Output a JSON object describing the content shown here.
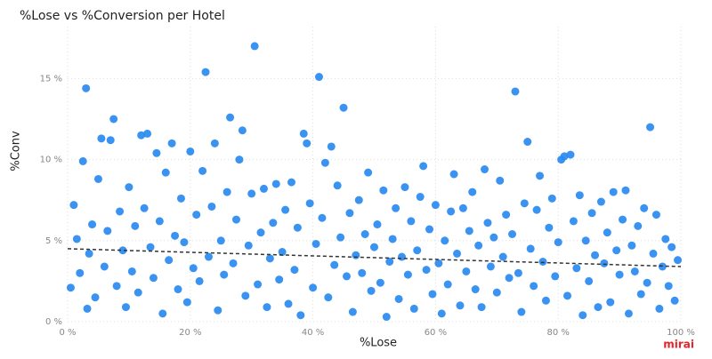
{
  "chart_data": {
    "type": "scatter",
    "title": "%Lose vs %Conversion per Hotel",
    "x_label": "%Lose",
    "y_label": "%Conv",
    "brand": "mirai",
    "color": "#2a8af0",
    "grid": true,
    "xlim": [
      0,
      100
    ],
    "ylim": [
      0,
      18.2
    ],
    "xticks": [
      {
        "value": 0,
        "label": "0 %"
      },
      {
        "value": 20,
        "label": "20 %"
      },
      {
        "value": 40,
        "label": "40 %"
      },
      {
        "value": 60,
        "label": "60 %"
      },
      {
        "value": 80,
        "label": "80 %"
      },
      {
        "value": 100,
        "label": "100 %"
      }
    ],
    "yticks": [
      {
        "value": 0,
        "label": "0 %"
      },
      {
        "value": 5,
        "label": "5 %"
      },
      {
        "value": 10,
        "label": "10 %"
      },
      {
        "value": 15,
        "label": "15 %"
      }
    ],
    "x": [
      0.5,
      1,
      1.5,
      2,
      2.5,
      3,
      3.2,
      3.5,
      4,
      4.5,
      5,
      5.5,
      6,
      6.5,
      7,
      7.5,
      8,
      8.5,
      9,
      9.5,
      10,
      10.5,
      11,
      11.5,
      12,
      12.5,
      13,
      13.5,
      14,
      14.5,
      15,
      15.5,
      16,
      16.5,
      17,
      17.5,
      18,
      18.5,
      19,
      19.5,
      20,
      20.5,
      21,
      21.5,
      22,
      22.5,
      23,
      23.5,
      24,
      24.5,
      25,
      25.5,
      26,
      26.5,
      27,
      27.5,
      28,
      28.5,
      29,
      29.5,
      30,
      30.5,
      31,
      31.5,
      32,
      32.5,
      33,
      33.5,
      34,
      34.5,
      35,
      35.5,
      36,
      36.5,
      37,
      37.5,
      38,
      38.5,
      39,
      39.5,
      40,
      40.5,
      41,
      41.5,
      42,
      42.5,
      43,
      43.5,
      44,
      44.5,
      45,
      45.5,
      46,
      46.5,
      47,
      47.5,
      48,
      48.5,
      49,
      49.5,
      50,
      50.5,
      51,
      51.5,
      52,
      52.5,
      53,
      53.5,
      54,
      54.5,
      55,
      55.5,
      56,
      56.5,
      57,
      57.5,
      58,
      58.5,
      59,
      59.5,
      60,
      60.5,
      61,
      61.5,
      62,
      62.5,
      63,
      63.5,
      64,
      64.5,
      65,
      65.5,
      66,
      66.5,
      67,
      67.5,
      68,
      68.5,
      69,
      69.5,
      70,
      70.5,
      71,
      71.5,
      72,
      72.5,
      73,
      73.5,
      74,
      74.5,
      75,
      75.5,
      76,
      76.5,
      77,
      77.5,
      78,
      78.5,
      79,
      79.5,
      80,
      80.5,
      81,
      81.5,
      82,
      82.5,
      83,
      83.5,
      84,
      84.5,
      85,
      85.5,
      86,
      86.5,
      87,
      87.5,
      88,
      88.5,
      89,
      89.5,
      90,
      90.5,
      91,
      91.5,
      92,
      92.5,
      93,
      93.5,
      94,
      94.5,
      95,
      95.5,
      96,
      96.5,
      97,
      97.5,
      98,
      98.5,
      99,
      99.5
    ],
    "values": [
      2.1,
      7.2,
      5.1,
      3.0,
      9.9,
      14.4,
      0.8,
      4.2,
      6.0,
      1.5,
      8.8,
      11.3,
      3.4,
      5.6,
      11.2,
      12.5,
      2.2,
      6.8,
      4.4,
      0.9,
      8.3,
      3.1,
      5.9,
      1.8,
      11.5,
      7.0,
      11.6,
      4.6,
      2.7,
      10.4,
      6.2,
      0.5,
      9.2,
      3.8,
      11.0,
      5.3,
      2.0,
      7.6,
      4.9,
      1.2,
      10.5,
      3.3,
      6.6,
      2.5,
      9.3,
      15.4,
      4.0,
      7.1,
      11.0,
      0.7,
      5.0,
      2.9,
      8.0,
      12.6,
      3.6,
      6.3,
      10.0,
      11.8,
      1.6,
      4.7,
      7.9,
      17.0,
      2.3,
      5.5,
      8.2,
      0.9,
      3.9,
      6.1,
      8.5,
      2.6,
      4.3,
      6.9,
      1.1,
      8.6,
      3.2,
      5.8,
      0.4,
      11.6,
      11.0,
      7.3,
      2.1,
      4.8,
      15.1,
      6.4,
      9.8,
      1.5,
      10.8,
      3.5,
      8.4,
      5.2,
      13.2,
      2.8,
      6.7,
      0.6,
      4.1,
      7.5,
      3.0,
      5.4,
      9.2,
      1.9,
      4.6,
      6.0,
      2.4,
      8.1,
      0.3,
      3.7,
      5.1,
      7.0,
      1.4,
      4.0,
      8.3,
      2.9,
      6.2,
      0.8,
      4.4,
      7.7,
      9.6,
      3.2,
      5.7,
      1.7,
      7.2,
      3.6,
      0.5,
      5.0,
      2.3,
      6.8,
      9.1,
      4.2,
      1.0,
      7.0,
      3.1,
      5.6,
      8.0,
      2.0,
      4.7,
      0.9,
      9.4,
      6.1,
      3.4,
      5.2,
      1.8,
      8.7,
      4.0,
      6.6,
      2.7,
      5.4,
      14.2,
      3.0,
      0.6,
      7.3,
      11.1,
      4.5,
      2.2,
      6.9,
      9.0,
      3.7,
      1.3,
      5.8,
      7.6,
      2.8,
      4.9,
      10.0,
      10.2,
      1.6,
      10.3,
      6.2,
      3.3,
      7.8,
      0.4,
      5.0,
      2.5,
      6.7,
      4.1,
      0.9,
      7.4,
      3.6,
      5.5,
      1.2,
      8.0,
      4.4,
      2.9,
      6.3,
      8.1,
      0.5,
      4.7,
      3.1,
      5.9,
      1.7,
      7.0,
      2.4,
      12.0,
      4.2,
      6.6,
      0.8,
      3.4,
      5.1,
      2.2,
      4.6,
      1.3,
      3.8
    ],
    "trend": {
      "x": [
        0,
        100
      ],
      "values": [
        4.5,
        3.4
      ],
      "color": "#333333"
    }
  }
}
